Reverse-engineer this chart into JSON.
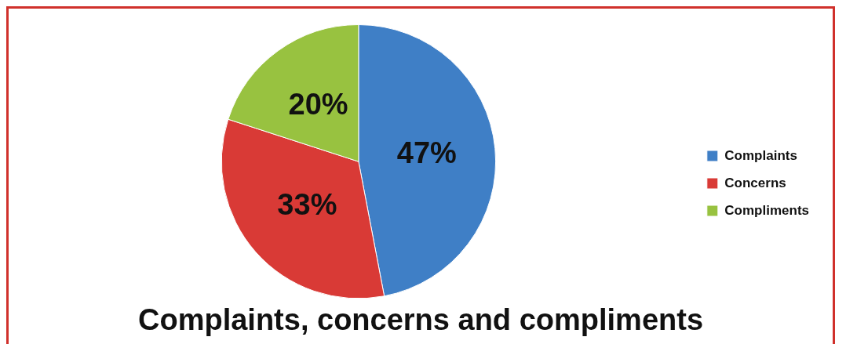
{
  "chart_data": {
    "type": "pie",
    "title": "Complaints, concerns and compliments",
    "categories": [
      "Complaints",
      "Concerns",
      "Compliments"
    ],
    "values": [
      47,
      33,
      20
    ],
    "colors": [
      "#3f7fc6",
      "#d93a36",
      "#98c240"
    ],
    "value_labels": [
      "47%",
      "33%",
      "20%"
    ],
    "legend": "right"
  }
}
